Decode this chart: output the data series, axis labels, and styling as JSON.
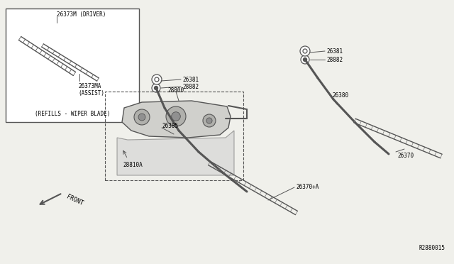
{
  "bg_color": "#f0f0eb",
  "line_color": "#555555",
  "diagram_id": "R2880015",
  "parts": {
    "26373M": "26373M (DRIVER)",
    "26373MA": "26373MA\n(ASSIST)",
    "refills": "(REFILLS - WIPER BLADE)",
    "26370A": "26370+A",
    "26385": "26385",
    "28882_1": "28882",
    "26381_1": "26381",
    "26370": "26370",
    "26380": "26380",
    "28800": "28800",
    "28810A": "28810A",
    "28882_2": "28882",
    "26381_2": "26381"
  },
  "font_size": 5.5,
  "font_family": "monospace"
}
